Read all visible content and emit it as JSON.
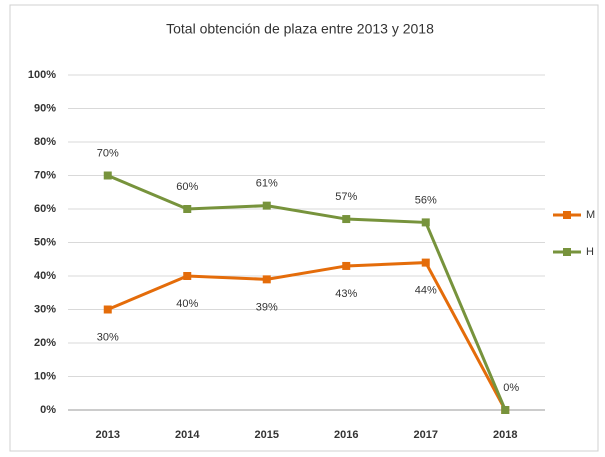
{
  "chart_data": {
    "type": "line",
    "title": "Total obtención de plaza entre 2013 y 2018",
    "categories": [
      "2013",
      "2014",
      "2015",
      "2016",
      "2017",
      "2018"
    ],
    "series": [
      {
        "name": "M",
        "color": "#e46c0a",
        "values": [
          30,
          40,
          39,
          43,
          44,
          0
        ],
        "value_labels": [
          "30%",
          "40%",
          "39%",
          "43%",
          "44%",
          "0%"
        ]
      },
      {
        "name": "H",
        "color": "#77933c",
        "values": [
          70,
          60,
          61,
          57,
          56,
          0
        ],
        "value_labels": [
          "70%",
          "60%",
          "61%",
          "57%",
          "56%",
          null
        ]
      }
    ],
    "ylim": [
      0,
      100
    ],
    "yticks": [
      {
        "value": 0,
        "label": "0%"
      },
      {
        "value": 10,
        "label": "10%"
      },
      {
        "value": 20,
        "label": "20%"
      },
      {
        "value": 30,
        "label": "30%"
      },
      {
        "value": 40,
        "label": "40%"
      },
      {
        "value": 50,
        "label": "50%"
      },
      {
        "value": 60,
        "label": "60%"
      },
      {
        "value": 70,
        "label": "70%"
      },
      {
        "value": 80,
        "label": "80%"
      },
      {
        "value": 90,
        "label": "90%"
      },
      {
        "value": 100,
        "label": "100%"
      }
    ],
    "grid": true,
    "legend": "right"
  }
}
